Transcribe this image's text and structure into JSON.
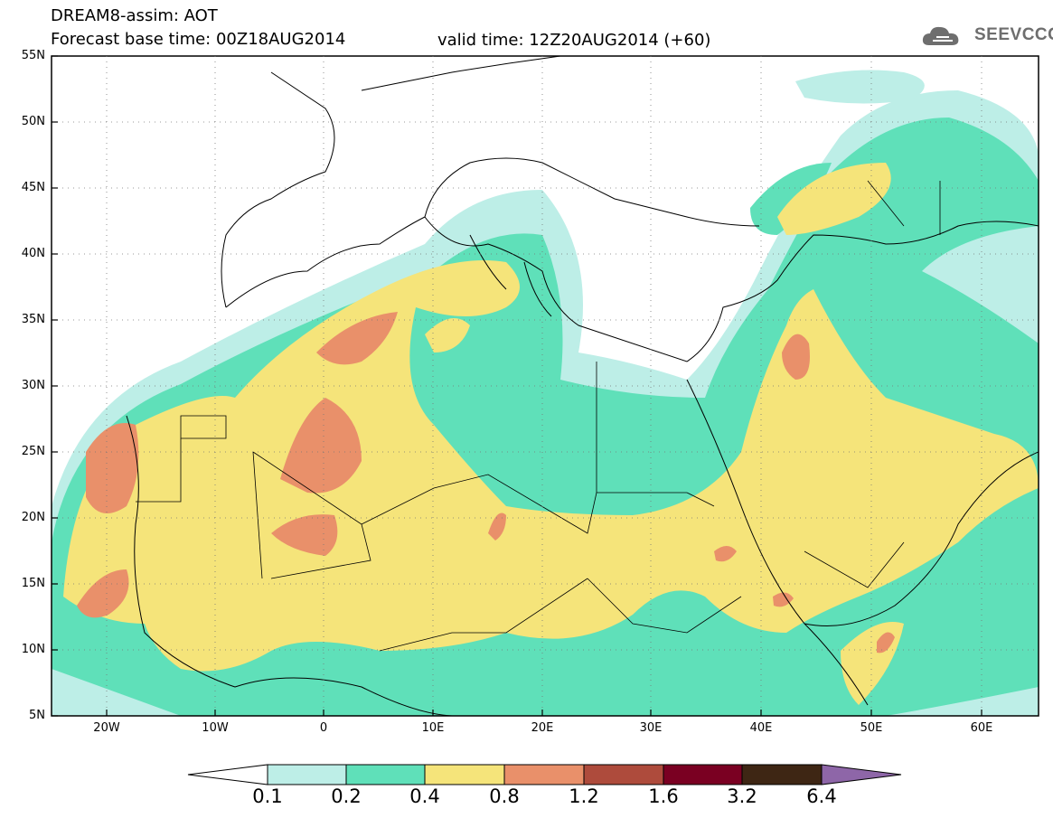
{
  "title_line1": "DREAM8-assim: AOT",
  "title_line2": "Forecast base time: 00Z18AUG2014",
  "valid_time": "valid time: 12Z20AUG2014 (+60)",
  "logo_text": "SEEVCCC",
  "lat_labels": [
    "55N",
    "50N",
    "45N",
    "40N",
    "35N",
    "30N",
    "25N",
    "20N",
    "15N",
    "10N",
    "5N"
  ],
  "lon_labels": [
    "20W",
    "10W",
    "0",
    "10E",
    "20E",
    "30E",
    "40E",
    "50E",
    "60E"
  ],
  "colorbar": {
    "colors": [
      "#ffffff",
      "#bdeee7",
      "#5fe0b9",
      "#f5e47a",
      "#e9906a",
      "#ae4b3c",
      "#7a0022",
      "#3e2614",
      "#8e66a8"
    ],
    "labels": [
      "0.1",
      "0.2",
      "0.4",
      "0.8",
      "1.2",
      "1.6",
      "3.2",
      "6.4"
    ]
  },
  "map_colors": {
    "c01": "#bdeee7",
    "c02": "#5fe0b9",
    "c04": "#f5e47a",
    "c08": "#e9906a",
    "c12": "#ae4b3c"
  }
}
